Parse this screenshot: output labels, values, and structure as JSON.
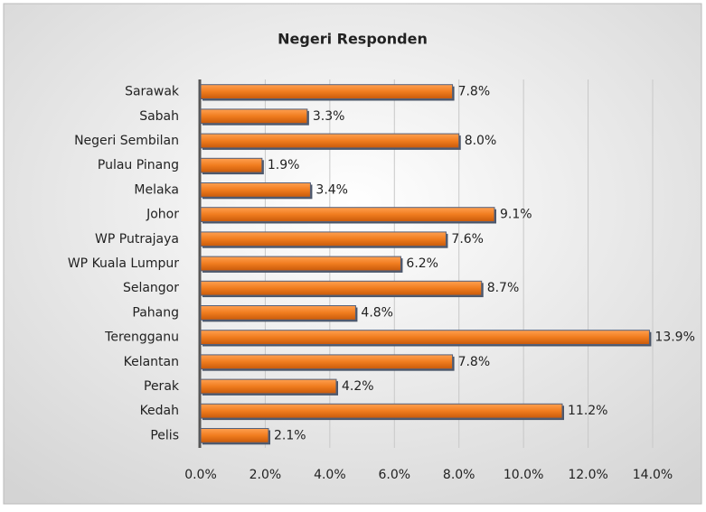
{
  "chart_data": {
    "type": "bar",
    "orientation": "horizontal",
    "title": "Negeri Responden",
    "categories": [
      "Sarawak",
      "Sabah",
      "Negeri Sembilan",
      "Pulau Pinang",
      "Melaka",
      "Johor",
      "WP Putrajaya",
      "WP Kuala Lumpur",
      "Selangor",
      "Pahang",
      "Terengganu",
      "Kelantan",
      "Perak",
      "Kedah",
      "Pelis"
    ],
    "values": [
      7.8,
      3.3,
      8.0,
      1.9,
      3.4,
      9.1,
      7.6,
      6.2,
      8.7,
      4.8,
      13.9,
      7.8,
      4.2,
      11.2,
      2.1
    ],
    "value_labels": [
      "7.8%",
      "3.3%",
      "8.0%",
      "1.9%",
      "3.4%",
      "9.1%",
      "7.6%",
      "6.2%",
      "8.7%",
      "4.8%",
      "13.9%",
      "7.8%",
      "4.2%",
      "11.2%",
      "2.1%"
    ],
    "color": "#f07c1e",
    "xlim": [
      0,
      14
    ],
    "xticks": [
      {
        "value": 0,
        "label": "0.0%"
      },
      {
        "value": 2,
        "label": "2.0%"
      },
      {
        "value": 4,
        "label": "4.0%"
      },
      {
        "value": 6,
        "label": "6.0%"
      },
      {
        "value": 8,
        "label": "8.0%"
      },
      {
        "value": 10,
        "label": "10.0%"
      },
      {
        "value": 12,
        "label": "12.0%"
      },
      {
        "value": 14,
        "label": "14.0%"
      }
    ],
    "grid": true
  }
}
